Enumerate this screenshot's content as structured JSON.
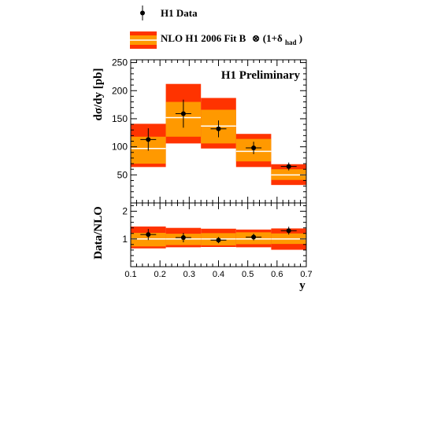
{
  "legend": {
    "data_label": "H1 Data",
    "nlo_label_main": "NLO H1 2006 Fit B",
    "nlo_label_suffix": "⊗ (1+δ",
    "nlo_label_sub": "had",
    "nlo_label_close": ")"
  },
  "annotation": "H1 Preliminary",
  "colors": {
    "outer_band": "#ff3300",
    "inner_band": "#ff9900",
    "central_line": "#ffffff",
    "marker": "#000000"
  },
  "chart_data": [
    {
      "type": "bar",
      "panel": "top",
      "title": "",
      "xlabel": "",
      "ylabel": "dσ/dy [pb]",
      "xlim": [
        0.1,
        0.7
      ],
      "ylim": [
        0,
        255
      ],
      "yticks": [
        50,
        100,
        150,
        200,
        250
      ],
      "bins": [
        [
          0.1,
          0.22
        ],
        [
          0.22,
          0.34
        ],
        [
          0.34,
          0.46
        ],
        [
          0.46,
          0.58
        ],
        [
          0.58,
          0.7
        ]
      ],
      "nlo_central": [
        97,
        152,
        137,
        92,
        50
      ],
      "nlo_inner_band": [
        [
          70,
          118
        ],
        [
          118,
          180
        ],
        [
          106,
          166
        ],
        [
          74,
          114
        ],
        [
          41,
          60
        ]
      ],
      "nlo_outer_band": [
        [
          64,
          141
        ],
        [
          106,
          212
        ],
        [
          97,
          187
        ],
        [
          64,
          123
        ],
        [
          32,
          69
        ]
      ],
      "data_x": [
        0.16,
        0.28,
        0.4,
        0.52,
        0.64
      ],
      "data_y": [
        113,
        159,
        132,
        98,
        65
      ],
      "data_err": [
        20,
        25,
        15,
        11,
        7
      ]
    },
    {
      "type": "bar",
      "panel": "ratio",
      "xlabel": "y",
      "ylabel": "Data/NLO",
      "xlim": [
        0.1,
        0.7
      ],
      "ylim": [
        0,
        2.3
      ],
      "yticks": [
        1,
        2
      ],
      "xticks": [
        0.1,
        0.2,
        0.3,
        0.4,
        0.5,
        0.6,
        0.7
      ],
      "xtick_labels": [
        "0.1",
        "0.2",
        "0.3",
        "0.4",
        "0.5",
        "0.6",
        "0.7"
      ],
      "bins": [
        [
          0.1,
          0.22
        ],
        [
          0.22,
          0.34
        ],
        [
          0.34,
          0.46
        ],
        [
          0.46,
          0.58
        ],
        [
          0.58,
          0.7
        ]
      ],
      "nlo_central": [
        1,
        1,
        1,
        1,
        1
      ],
      "nlo_inner_band": [
        [
          0.73,
          1.22
        ],
        [
          0.78,
          1.19
        ],
        [
          0.77,
          1.21
        ],
        [
          0.81,
          1.24
        ],
        [
          0.82,
          1.2
        ]
      ],
      "nlo_outer_band": [
        [
          0.66,
          1.45
        ],
        [
          0.7,
          1.4
        ],
        [
          0.71,
          1.37
        ],
        [
          0.7,
          1.34
        ],
        [
          0.61,
          1.38
        ]
      ],
      "data_x": [
        0.16,
        0.28,
        0.4,
        0.52,
        0.64
      ],
      "data_y": [
        1.16,
        1.05,
        0.96,
        1.07,
        1.3
      ],
      "data_err": [
        0.2,
        0.17,
        0.11,
        0.12,
        0.14
      ]
    }
  ]
}
